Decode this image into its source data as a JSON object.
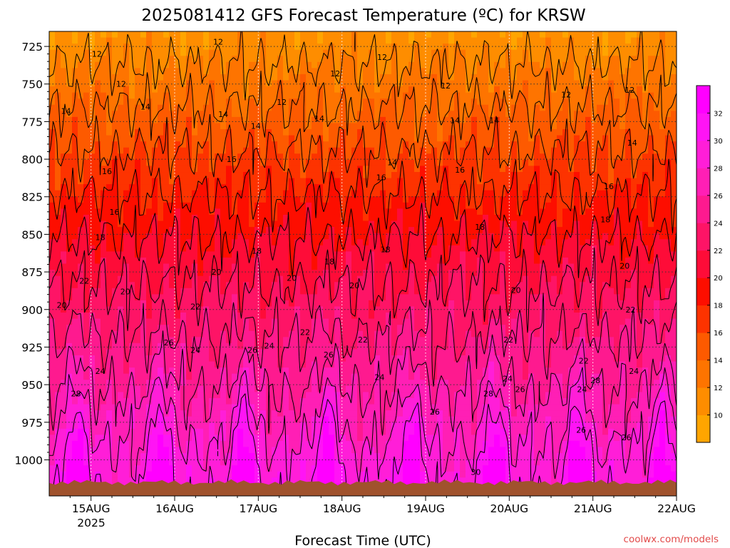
{
  "chart_data": {
    "type": "heatmap",
    "title": "2025081412 GFS Forecast Temperature (ºC) for KRSW",
    "xlabel": "Forecast Time (UTC)",
    "ylabel": "",
    "x_ticks": [
      "15AUG",
      "16AUG",
      "17AUG",
      "18AUG",
      "19AUG",
      "20AUG",
      "21AUG",
      "22AUG"
    ],
    "x_tick_values": [
      1,
      2,
      3,
      4,
      5,
      6,
      7,
      8
    ],
    "x_sublabel": "2025",
    "xlim": [
      0.5,
      8
    ],
    "y_ticks": [
      "725",
      "750",
      "775",
      "800",
      "825",
      "850",
      "875",
      "900",
      "925",
      "950",
      "975",
      "1000"
    ],
    "y_tick_values": [
      725,
      750,
      775,
      800,
      825,
      850,
      875,
      900,
      925,
      950,
      975,
      1000
    ],
    "ylim": [
      715,
      1024
    ],
    "ground_pressure": 1015,
    "colorbar": {
      "levels": [
        10,
        12,
        14,
        16,
        18,
        20,
        22,
        24,
        26,
        28,
        30,
        32
      ],
      "labels": [
        "10",
        "12",
        "14",
        "16",
        "18",
        "20",
        "22",
        "24",
        "26",
        "28",
        "30",
        "32"
      ],
      "colors": [
        "#ffa500",
        "#fe8d00",
        "#fe7400",
        "#fd5a00",
        "#fd3300",
        "#fd0e00",
        "#fe0c38",
        "#fe1466",
        "#fe1a8f",
        "#ff1fb5",
        "#ff1ed8",
        "#ff14f5",
        "#ff00ff"
      ]
    },
    "contour_levels": [
      12,
      14,
      16,
      18,
      20,
      22,
      24,
      26,
      28,
      30
    ],
    "contour_labels": [
      {
        "text": "12",
        "x": 1.07,
        "y": 730
      },
      {
        "text": "12",
        "x": 2.52,
        "y": 722
      },
      {
        "text": "12",
        "x": 4.48,
        "y": 732
      },
      {
        "text": "12",
        "x": 1.36,
        "y": 750
      },
      {
        "text": "12",
        "x": 3.92,
        "y": 743
      },
      {
        "text": "12",
        "x": 3.28,
        "y": 762
      },
      {
        "text": "12",
        "x": 5.24,
        "y": 751
      },
      {
        "text": "12",
        "x": 6.68,
        "y": 757
      },
      {
        "text": "12",
        "x": 7.44,
        "y": 754
      },
      {
        "text": "14",
        "x": 0.7,
        "y": 768
      },
      {
        "text": "14",
        "x": 1.65,
        "y": 765
      },
      {
        "text": "14",
        "x": 2.58,
        "y": 770
      },
      {
        "text": "14",
        "x": 2.97,
        "y": 778
      },
      {
        "text": "14",
        "x": 3.73,
        "y": 773
      },
      {
        "text": "14",
        "x": 5.35,
        "y": 774
      },
      {
        "text": "14",
        "x": 5.82,
        "y": 774
      },
      {
        "text": "14",
        "x": 7.47,
        "y": 789
      },
      {
        "text": "14",
        "x": 4.6,
        "y": 802
      },
      {
        "text": "16",
        "x": 1.19,
        "y": 808
      },
      {
        "text": "16",
        "x": 2.68,
        "y": 800
      },
      {
        "text": "16",
        "x": 4.47,
        "y": 812
      },
      {
        "text": "16",
        "x": 5.41,
        "y": 807
      },
      {
        "text": "16",
        "x": 7.19,
        "y": 818
      },
      {
        "text": "16",
        "x": 1.28,
        "y": 835
      },
      {
        "text": "18",
        "x": 1.11,
        "y": 852
      },
      {
        "text": "18",
        "x": 2.98,
        "y": 861
      },
      {
        "text": "18",
        "x": 3.85,
        "y": 868
      },
      {
        "text": "18",
        "x": 4.52,
        "y": 860
      },
      {
        "text": "18",
        "x": 5.65,
        "y": 845
      },
      {
        "text": "18",
        "x": 7.15,
        "y": 840
      },
      {
        "text": "20",
        "x": 2.5,
        "y": 875
      },
      {
        "text": "20",
        "x": 3.4,
        "y": 879
      },
      {
        "text": "20",
        "x": 4.15,
        "y": 884
      },
      {
        "text": "20",
        "x": 6.08,
        "y": 887
      },
      {
        "text": "20",
        "x": 7.38,
        "y": 871
      },
      {
        "text": "20",
        "x": 1.41,
        "y": 888
      },
      {
        "text": "20",
        "x": 0.65,
        "y": 897
      },
      {
        "text": "22",
        "x": 0.92,
        "y": 881
      },
      {
        "text": "22",
        "x": 2.25,
        "y": 898
      },
      {
        "text": "22",
        "x": 3.56,
        "y": 915
      },
      {
        "text": "22",
        "x": 4.25,
        "y": 920
      },
      {
        "text": "22",
        "x": 5.99,
        "y": 920
      },
      {
        "text": "22",
        "x": 6.89,
        "y": 934
      },
      {
        "text": "22",
        "x": 7.45,
        "y": 900
      },
      {
        "text": "24",
        "x": 1.11,
        "y": 941
      },
      {
        "text": "24",
        "x": 2.25,
        "y": 927
      },
      {
        "text": "24",
        "x": 3.13,
        "y": 924
      },
      {
        "text": "24",
        "x": 4.45,
        "y": 945
      },
      {
        "text": "24",
        "x": 5.98,
        "y": 946
      },
      {
        "text": "24",
        "x": 6.87,
        "y": 953
      },
      {
        "text": "24",
        "x": 7.49,
        "y": 941
      },
      {
        "text": "26",
        "x": 1.93,
        "y": 922
      },
      {
        "text": "26",
        "x": 2.93,
        "y": 927
      },
      {
        "text": "26",
        "x": 3.84,
        "y": 930
      },
      {
        "text": "26",
        "x": 5.11,
        "y": 968
      },
      {
        "text": "26",
        "x": 6.13,
        "y": 953
      },
      {
        "text": "26",
        "x": 6.86,
        "y": 980
      },
      {
        "text": "26",
        "x": 7.4,
        "y": 985
      },
      {
        "text": "28",
        "x": 0.82,
        "y": 956
      },
      {
        "text": "28",
        "x": 5.75,
        "y": 956
      },
      {
        "text": "28",
        "x": 7.03,
        "y": 947
      },
      {
        "text": "30",
        "x": 5.6,
        "y": 1008
      }
    ]
  },
  "credit": "coolwx.com/models"
}
